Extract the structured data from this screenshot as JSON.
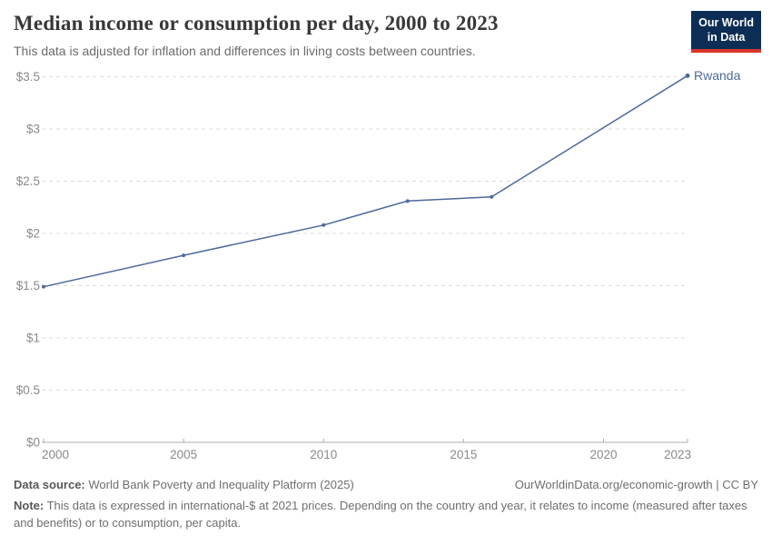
{
  "header": {
    "logo": {
      "line1": "Our World",
      "line2": "in Data",
      "bg_color": "#0d2e54",
      "accent_color": "#d8352a"
    }
  },
  "chart_data": {
    "type": "line",
    "title": "Median income or consumption per day, 2000 to 2023",
    "subtitle": "This data is adjusted for inflation and differences in living costs between countries.",
    "xlim": [
      2000,
      2023
    ],
    "ylim": [
      0,
      3.5
    ],
    "x_ticks": [
      2000,
      2005,
      2010,
      2015,
      2020,
      2023
    ],
    "y_ticks": [
      0,
      0.5,
      1,
      1.5,
      2,
      2.5,
      3,
      3.5
    ],
    "y_prefix": "$",
    "grid": "horizontal-dashed",
    "legend_position": "end-of-line-label",
    "series": [
      {
        "name": "Rwanda",
        "color": "#4c6a9c",
        "years": [
          2000,
          2005,
          2010,
          2013,
          2016,
          2023
        ],
        "values": [
          1.49,
          1.79,
          2.08,
          2.31,
          2.35,
          3.51
        ]
      }
    ]
  },
  "footer": {
    "source_label": "Data source:",
    "source_text": " World Bank Poverty and Inequality Platform (2025)",
    "credit": "OurWorldinData.org/economic-growth | CC BY",
    "note_label": "Note:",
    "note_text": " This data is expressed in international-$ at 2021 prices. Depending on the country and year, it relates to income (measured after taxes and benefits) or to consumption, per capita."
  }
}
